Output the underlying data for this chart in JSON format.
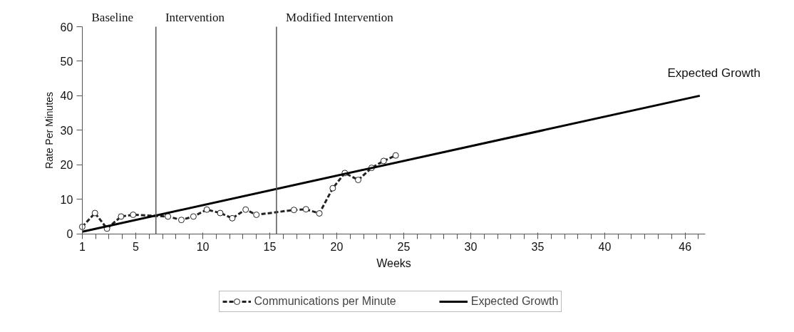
{
  "chart_data": {
    "type": "line",
    "xlabel": "Weeks",
    "ylabel": "Rate Per Minutes",
    "xlim": [
      1,
      47.5
    ],
    "ylim": [
      0,
      60
    ],
    "xticks": [
      1,
      5,
      10,
      15,
      20,
      25,
      30,
      35,
      40,
      46
    ],
    "yticks": [
      0,
      10,
      20,
      30,
      40,
      50,
      60
    ],
    "grid": false,
    "legend": "bottom",
    "series": [
      {
        "name": "Communications per Minute",
        "color": "#222222",
        "marker": "circle",
        "line_style": "dashed",
        "x": [
          1,
          1.95,
          2.85,
          3.9,
          4.8,
          7.4,
          8.4,
          9.3,
          10.3,
          11.3,
          12.2,
          13.2,
          14.0,
          16.8,
          17.7,
          18.7,
          19.7,
          20.6,
          21.6,
          22.6,
          23.5,
          24.4
        ],
        "values": [
          2,
          6,
          1.5,
          5,
          5.5,
          5,
          4,
          5,
          7,
          6,
          4.5,
          7,
          5.5,
          6.9,
          7.1,
          5.9,
          13.2,
          17.6,
          15.6,
          19.1,
          21.1,
          22.7
        ]
      },
      {
        "name": "Expected Growth",
        "color": "#000000",
        "marker": "none",
        "line_style": "solid",
        "x": [
          1,
          47.1
        ],
        "values": [
          0.6,
          40
        ]
      }
    ],
    "ref_lines": [
      {
        "axis": "x",
        "value": 6.5,
        "color": "#555555"
      },
      {
        "axis": "x",
        "value": 15.5,
        "color": "#555555"
      }
    ],
    "annotations": [
      "Baseline",
      "Intervention",
      "Modified Intervention",
      {
        "text": "Expected Growth",
        "x": 47.1,
        "y": 40
      }
    ]
  }
}
